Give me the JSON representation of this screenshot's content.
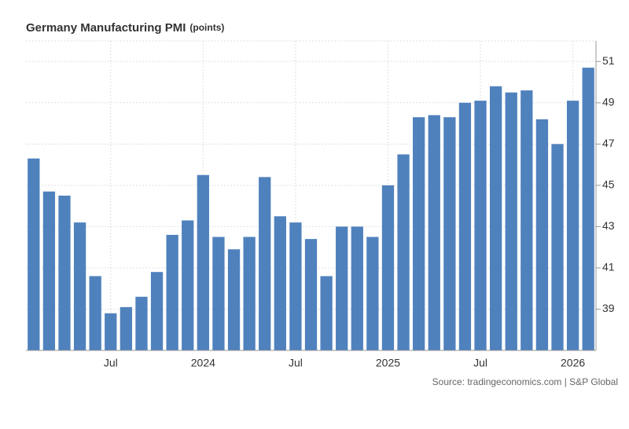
{
  "chart_data": {
    "type": "bar",
    "title": "Germany Manufacturing PMI",
    "unit": "(points)",
    "source": "Source: tradingeconomics.com | S&P Global",
    "categories": [
      null,
      null,
      null,
      null,
      null,
      "Jul",
      null,
      null,
      null,
      null,
      null,
      "2024",
      null,
      null,
      null,
      null,
      null,
      "Jul",
      null,
      null,
      null,
      null,
      null,
      "2025",
      null,
      null,
      null,
      null,
      null,
      "Jul",
      null,
      null,
      null,
      null,
      null,
      "2026",
      null
    ],
    "values": [
      46.3,
      44.7,
      44.5,
      43.2,
      40.6,
      38.8,
      39.1,
      39.6,
      40.8,
      42.6,
      43.3,
      45.5,
      42.5,
      41.9,
      42.5,
      45.4,
      43.5,
      43.2,
      42.4,
      40.6,
      43.0,
      43.0,
      42.5,
      45.0,
      46.5,
      48.3,
      48.4,
      48.3,
      49.0,
      49.1,
      49.8,
      49.5,
      49.6,
      48.2,
      47.0,
      49.1,
      50.7
    ],
    "color": "#4f81bd",
    "ylim": [
      37,
      52
    ],
    "yticks": [
      39,
      41,
      43,
      45,
      47,
      49,
      51
    ],
    "grid": true
  }
}
